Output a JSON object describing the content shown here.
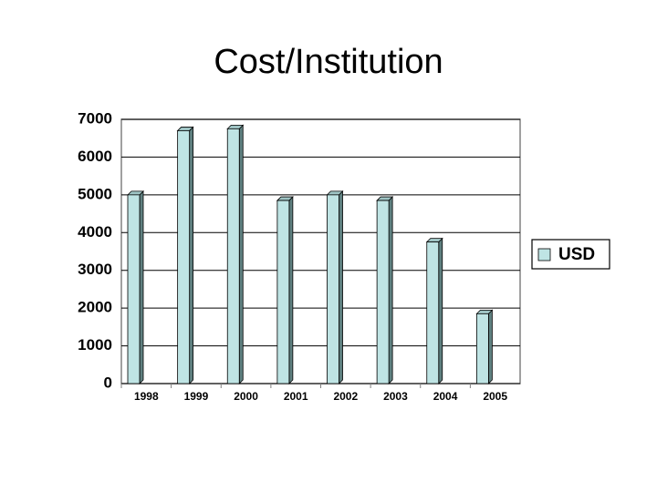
{
  "chart_data": {
    "type": "bar",
    "title": "Cost/Institution",
    "categories": [
      "1998",
      "1999",
      "2000",
      "2001",
      "2002",
      "2003",
      "2004",
      "2005"
    ],
    "series": [
      {
        "name": "USD",
        "color": "#bfe4e4",
        "values": [
          5000,
          6700,
          6750,
          4850,
          5000,
          4850,
          3750,
          1850
        ]
      }
    ],
    "ylim": [
      0,
      7000
    ],
    "yticks": [
      0,
      1000,
      2000,
      3000,
      4000,
      5000,
      6000,
      7000
    ],
    "grid": true,
    "legend": "right"
  }
}
